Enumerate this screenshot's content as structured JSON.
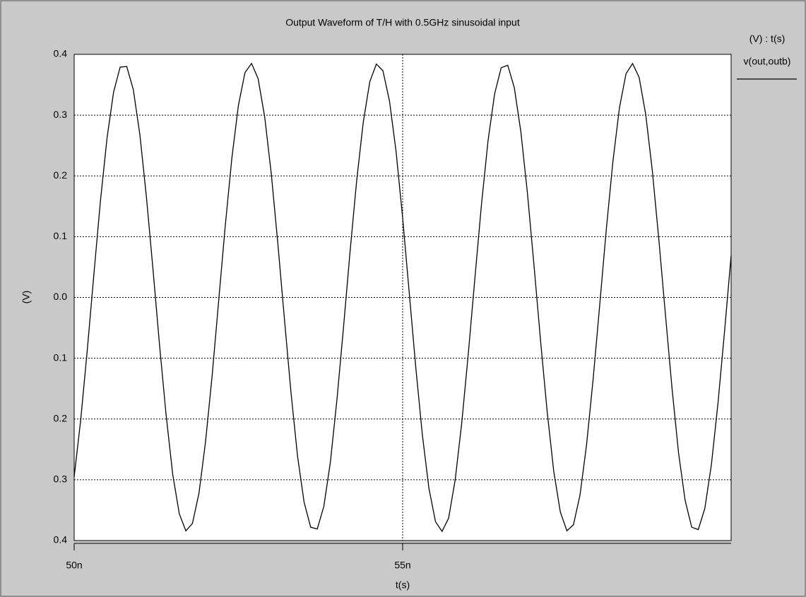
{
  "chart_data": {
    "type": "line",
    "title": "Output Waveform of T/H with 0.5GHz sinusoidal input",
    "legend_title": "(V) : t(s)",
    "y_axis_label": "(V)",
    "x_axis_label": "t(s)",
    "grid": true,
    "legend_position": "right",
    "xlim": [
      5e-08,
      6e-08
    ],
    "xticks": [
      {
        "value": 5e-08,
        "label": "50n"
      },
      {
        "value": 5.5e-08,
        "label": "55n"
      }
    ],
    "ylim": [
      -0.4,
      0.4
    ],
    "yticks": [
      0.4,
      0.3,
      0.2,
      0.1,
      {
        "value": 0,
        "label": "0.0"
      },
      {
        "value": -0.1,
        "label": "0.1"
      },
      {
        "value": -0.2,
        "label": "0.2"
      },
      {
        "value": -0.3,
        "label": "0.3"
      },
      {
        "value": -0.4,
        "label": "0.4"
      }
    ],
    "x": [
      5e-08,
      5.01e-08,
      5.02e-08,
      5.03e-08,
      5.04e-08,
      5.05e-08,
      5.06e-08,
      5.07e-08,
      5.08e-08,
      5.09e-08,
      5.1e-08,
      5.11e-08,
      5.12e-08,
      5.13e-08,
      5.14e-08,
      5.15e-08,
      5.16e-08,
      5.17e-08,
      5.18e-08,
      5.19e-08,
      5.2e-08,
      5.21e-08,
      5.22e-08,
      5.23e-08,
      5.24e-08,
      5.25e-08,
      5.26e-08,
      5.27e-08,
      5.28e-08,
      5.29e-08,
      5.3e-08,
      5.31e-08,
      5.32e-08,
      5.33e-08,
      5.34e-08,
      5.35e-08,
      5.36e-08,
      5.37e-08,
      5.38e-08,
      5.39e-08,
      5.4e-08,
      5.41e-08,
      5.42e-08,
      5.43e-08,
      5.44e-08,
      5.45e-08,
      5.46e-08,
      5.47e-08,
      5.48e-08,
      5.49e-08,
      5.5e-08,
      5.51e-08,
      5.52e-08,
      5.53e-08,
      5.54e-08,
      5.55e-08,
      5.56e-08,
      5.57e-08,
      5.58e-08,
      5.59e-08,
      5.6e-08,
      5.61e-08,
      5.62e-08,
      5.63e-08,
      5.64e-08,
      5.65e-08,
      5.66e-08,
      5.67e-08,
      5.68e-08,
      5.69e-08,
      5.7e-08,
      5.71e-08,
      5.72e-08,
      5.73e-08,
      5.74e-08,
      5.75e-08,
      5.76e-08,
      5.77e-08,
      5.78e-08,
      5.79e-08,
      5.8e-08,
      5.81e-08,
      5.82e-08,
      5.83e-08,
      5.84e-08,
      5.85e-08,
      5.86e-08,
      5.87e-08,
      5.88e-08,
      5.89e-08,
      5.9e-08,
      5.91e-08,
      5.92e-08,
      5.93e-08,
      5.94e-08,
      5.95e-08,
      5.96e-08,
      5.97e-08,
      5.98e-08,
      5.99e-08,
      6e-08
    ],
    "series": [
      {
        "name": "v(out,outb)",
        "color": "#000000",
        "values": [
          -0.295,
          -0.201,
          -0.086,
          0.038,
          0.159,
          0.262,
          0.338,
          0.379,
          0.38,
          0.342,
          0.268,
          0.165,
          0.046,
          -0.079,
          -0.194,
          -0.291,
          -0.356,
          -0.384,
          -0.372,
          -0.322,
          -0.237,
          -0.129,
          -0.005,
          0.118,
          0.229,
          0.316,
          0.37,
          0.385,
          0.36,
          0.297,
          0.204,
          0.089,
          -0.035,
          -0.156,
          -0.261,
          -0.337,
          -0.378,
          -0.381,
          -0.344,
          -0.271,
          -0.168,
          -0.049,
          0.076,
          0.192,
          0.288,
          0.355,
          0.384,
          0.373,
          0.323,
          0.24,
          0.131,
          0.008,
          -0.115,
          -0.226,
          -0.314,
          -0.369,
          -0.385,
          -0.363,
          -0.3,
          -0.206,
          -0.092,
          0.032,
          0.153,
          0.258,
          0.335,
          0.378,
          0.382,
          0.345,
          0.272,
          0.171,
          0.052,
          -0.072,
          -0.188,
          -0.286,
          -0.353,
          -0.384,
          -0.374,
          -0.325,
          -0.242,
          -0.134,
          -0.012,
          0.112,
          0.223,
          0.312,
          0.368,
          0.385,
          0.362,
          0.301,
          0.209,
          0.095,
          -0.028,
          -0.149,
          -0.256,
          -0.334,
          -0.378,
          -0.382,
          -0.347,
          -0.275,
          -0.174,
          -0.056,
          0.069
        ]
      }
    ]
  }
}
